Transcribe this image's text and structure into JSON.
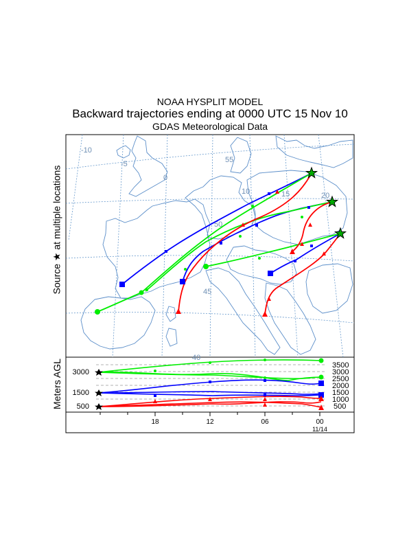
{
  "chart_data": {
    "type": "trajectory-map",
    "title": "NOAA HYSPLIT MODEL",
    "subtitle": "Backward trajectories ending at 0000 UTC 15 Nov 10",
    "data_source": "GDAS Meteorological Data",
    "source_label": "Source",
    "source_label_suffix": "at multiple locations",
    "source_symbol": "★",
    "map": {
      "lat_labels": [
        "55",
        "50",
        "45",
        "40"
      ],
      "lon_labels": [
        "-10",
        "-5",
        "0",
        "10",
        "15",
        "20"
      ],
      "grid": "dashed"
    },
    "height_panel": {
      "ylabel": "Meters AGL",
      "left_ticks": [
        "3000",
        "1500",
        "500"
      ],
      "right_ticks": [
        "3500",
        "3000",
        "2500",
        "2000",
        "1500",
        "1000",
        "500"
      ],
      "time_ticks": [
        "18",
        "12",
        "06",
        "00"
      ],
      "date_label": "11/14"
    },
    "series": [
      {
        "name": "500 m AGL",
        "color": "#ff0000",
        "marker": "triangle"
      },
      {
        "name": "1500 m AGL",
        "color": "#0000ff",
        "marker": "square"
      },
      {
        "name": "3000 m AGL",
        "color": "#00ee00",
        "marker": "circle"
      }
    ]
  }
}
